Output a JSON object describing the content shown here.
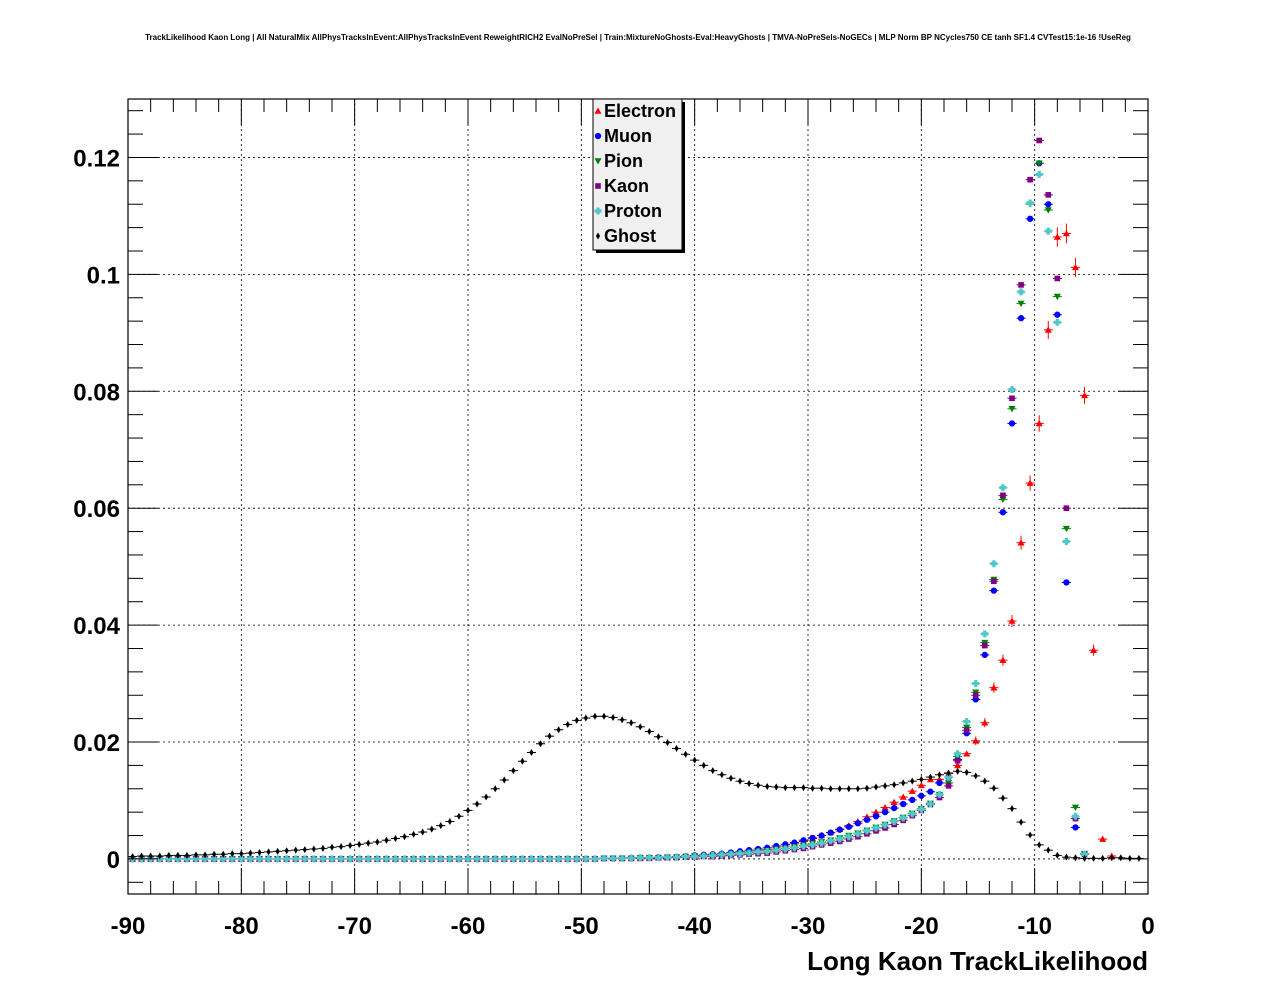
{
  "title": "TrackLikelihood Kaon Long | All NaturalMix AllPhysTracksInEvent:AllPhysTracksInEvent ReweightRICH2 EvalNoPreSel | Train:MixtureNoGhosts-Eval:HeavyGhosts | TMVA-NoPreSels-NoGECs | MLP Norm BP NCycles750 CE tanh SF1.4 CVTest15:1e-16 !UseReg",
  "chart_data": {
    "type": "scatter",
    "title": "TrackLikelihood Kaon Long | All NaturalMix AllPhysTracksInEvent:AllPhysTracksInEvent ReweightRICH2 EvalNoPreSel | Train:MixtureNoGhosts-Eval:HeavyGhosts | TMVA-NoPreSels-NoGECs | MLP Norm BP NCycles750 CE tanh SF1.4 CVTest15:1e-16 !UseReg",
    "xlabel": "Long Kaon TrackLikelihood",
    "ylabel": "",
    "xlim": [
      -90,
      0
    ],
    "ylim": [
      -0.006,
      0.13
    ],
    "grid": true,
    "legend_position": "top-center",
    "x_ticks": [
      "-90",
      "-80",
      "-70",
      "-60",
      "-50",
      "-40",
      "-30",
      "-20",
      "-10",
      "0"
    ],
    "x_tick_values": [
      -90,
      -80,
      -70,
      -60,
      -50,
      -40,
      -30,
      -20,
      -10,
      0
    ],
    "y_ticks": [
      "0",
      "0.02",
      "0.04",
      "0.06",
      "0.08",
      "0.1",
      "0.12"
    ],
    "y_tick_values": [
      0,
      0.02,
      0.04,
      0.06,
      0.08,
      0.1,
      0.12
    ],
    "x": [
      -89.6,
      -88.8,
      -88,
      -87.2,
      -86.4,
      -85.6,
      -84.8,
      -84,
      -83.2,
      -82.4,
      -81.6,
      -80.8,
      -80,
      -79.2,
      -78.4,
      -77.6,
      -76.8,
      -76,
      -75.2,
      -74.4,
      -73.6,
      -72.8,
      -72,
      -71.2,
      -70.4,
      -69.6,
      -68.8,
      -68,
      -67.2,
      -66.4,
      -65.6,
      -64.8,
      -64,
      -63.2,
      -62.4,
      -61.6,
      -60.8,
      -60,
      -59.2,
      -58.4,
      -57.6,
      -56.8,
      -56,
      -55.2,
      -54.4,
      -53.6,
      -52.8,
      -52,
      -51.2,
      -50.4,
      -49.6,
      -48.8,
      -48,
      -47.2,
      -46.4,
      -45.6,
      -44.8,
      -44,
      -43.2,
      -42.4,
      -41.6,
      -40.8,
      -40,
      -39.2,
      -38.4,
      -37.6,
      -36.8,
      -36,
      -35.2,
      -34.4,
      -33.6,
      -32.8,
      -32,
      -31.2,
      -30.4,
      -29.6,
      -28.8,
      -28,
      -27.2,
      -26.4,
      -25.6,
      -24.8,
      -24,
      -23.2,
      -22.4,
      -21.6,
      -20.8,
      -20,
      -19.2,
      -18.4,
      -17.6,
      -16.8,
      -16,
      -15.2,
      -14.4,
      -13.6,
      -12.8,
      -12,
      -11.2,
      -10.4,
      -9.6,
      -8.8,
      -8,
      -7.2,
      -6.4,
      -5.6,
      -4.8,
      -4,
      -3.2,
      -2.4,
      -1.6,
      -0.8
    ],
    "series": [
      {
        "name": "Electron",
        "color": "#ff0000",
        "marker": "triangle-up",
        "error_bars": true,
        "values": [
          0,
          0,
          0,
          0,
          0,
          0,
          0,
          0,
          0,
          0,
          0,
          0,
          0,
          0,
          0,
          0,
          0,
          0,
          0,
          0,
          0,
          0,
          0,
          0,
          0,
          0,
          0,
          0,
          0,
          0,
          0,
          0,
          0,
          0,
          0,
          0,
          0,
          0,
          0,
          0,
          0,
          0,
          0,
          0,
          0,
          0,
          0,
          0,
          0,
          0,
          0,
          0,
          0.0001,
          0.0001,
          0.0001,
          0.0001,
          0.0001,
          0.0002,
          0.0002,
          0.0002,
          0.0003,
          0.0003,
          0.0004,
          0.0005,
          0.0006,
          0.0007,
          0.0008,
          0.001,
          0.0012,
          0.0014,
          0.0016,
          0.0019,
          0.0022,
          0.0026,
          0.003,
          0.0035,
          0.004,
          0.0045,
          0.0051,
          0.0057,
          0.0064,
          0.0072,
          0.008,
          0.0088,
          0.0097,
          0.0106,
          0.0116,
          0.0126,
          0.0136,
          0.0136,
          0.0146,
          0.016,
          0.018,
          0.0202,
          0.0233,
          0.0293,
          0.034,
          0.0407,
          0.0541,
          0.0643,
          0.0745,
          0.0905,
          0.1064,
          0.107,
          0.1012,
          0.0793,
          0.0357,
          0.0034,
          0.0005
        ]
      },
      {
        "name": "Muon",
        "color": "#0000ff",
        "marker": "circle",
        "error_bars": false,
        "values": [
          0,
          0,
          0,
          0,
          0,
          0,
          0,
          0,
          0,
          0,
          0,
          0,
          0,
          0,
          0,
          0,
          0,
          0,
          0,
          0,
          0,
          0,
          0,
          0,
          0,
          0,
          0,
          0,
          0,
          0,
          0,
          0,
          0,
          0,
          0,
          0,
          0,
          0,
          0,
          0,
          0,
          0,
          0,
          0,
          0,
          0,
          0,
          0,
          0,
          0,
          0,
          0,
          0.0001,
          0.0001,
          0.0001,
          0.0002,
          0.0002,
          0.0002,
          0.0003,
          0.0003,
          0.0004,
          0.0005,
          0.0006,
          0.0007,
          0.0008,
          0.0009,
          0.0011,
          0.0013,
          0.0015,
          0.0017,
          0.0019,
          0.0022,
          0.0025,
          0.0028,
          0.0032,
          0.0036,
          0.004,
          0.0045,
          0.005,
          0.0055,
          0.0061,
          0.0067,
          0.0073,
          0.008,
          0.0087,
          0.0094,
          0.0101,
          0.0108,
          0.0115,
          0.013,
          0.014,
          0.017,
          0.0215,
          0.0273,
          0.0349,
          0.0459,
          0.0593,
          0.0745,
          0.0925,
          0.1095,
          0.119,
          0.112,
          0.0931,
          0.0473,
          0.0054,
          0.0008
        ]
      },
      {
        "name": "Pion",
        "color": "#008000",
        "marker": "triangle-down",
        "error_bars": false,
        "values": [
          0,
          0,
          0,
          0,
          0,
          0,
          0,
          0,
          0,
          0,
          0,
          0,
          0,
          0,
          0,
          0,
          0,
          0,
          0,
          0,
          0,
          0,
          0,
          0,
          0,
          0,
          0,
          0,
          0,
          0,
          0,
          0,
          0,
          0,
          0,
          0,
          0,
          0,
          0,
          0,
          0,
          0,
          0,
          0,
          0,
          0,
          0,
          0,
          0,
          0,
          0,
          0,
          0.0001,
          0.0001,
          0.0001,
          0.0001,
          0.0002,
          0.0002,
          0.0002,
          0.0003,
          0.0003,
          0.0004,
          0.0005,
          0.0005,
          0.0006,
          0.0007,
          0.0008,
          0.0009,
          0.0011,
          0.0012,
          0.0014,
          0.0016,
          0.0018,
          0.002,
          0.0023,
          0.0026,
          0.0029,
          0.0032,
          0.0036,
          0.004,
          0.0044,
          0.0049,
          0.0054,
          0.0059,
          0.0065,
          0.0071,
          0.0078,
          0.0086,
          0.0095,
          0.011,
          0.013,
          0.0175,
          0.0225,
          0.0285,
          0.037,
          0.0478,
          0.0615,
          0.077,
          0.095,
          0.112,
          0.119,
          0.111,
          0.0962,
          0.0565,
          0.0088,
          0.0009
        ]
      },
      {
        "name": "Kaon",
        "color": "#800080",
        "marker": "square",
        "error_bars": false,
        "values": [
          0,
          0,
          0,
          0,
          0,
          0,
          0,
          0,
          0,
          0,
          0,
          0,
          0,
          0,
          0,
          0,
          0,
          0,
          0,
          0,
          0,
          0,
          0,
          0,
          0,
          0,
          0,
          0,
          0,
          0,
          0,
          0,
          0,
          0,
          0,
          0,
          0,
          0,
          0,
          0,
          0,
          0,
          0,
          0,
          0,
          0,
          0,
          0,
          0,
          0,
          0,
          0,
          0.0001,
          0.0001,
          0.0001,
          0.0001,
          0.0001,
          0.0001,
          0.0002,
          0.0002,
          0.0002,
          0.0003,
          0.0003,
          0.0004,
          0.0004,
          0.0005,
          0.0006,
          0.0007,
          0.0008,
          0.0009,
          0.001,
          0.0012,
          0.0014,
          0.0016,
          0.0018,
          0.0021,
          0.0024,
          0.0027,
          0.003,
          0.0034,
          0.0038,
          0.0043,
          0.0048,
          0.0053,
          0.0059,
          0.0066,
          0.0074,
          0.0083,
          0.0093,
          0.0105,
          0.0125,
          0.0168,
          0.022,
          0.028,
          0.0365,
          0.0475,
          0.0622,
          0.0788,
          0.0982,
          0.1162,
          0.1229,
          0.1136,
          0.0993,
          0.06,
          0.0069,
          0.0008
        ]
      },
      {
        "name": "Proton",
        "color": "#4fc8c8",
        "marker": "cross",
        "error_bars": false,
        "values": [
          0,
          0,
          0,
          0,
          0,
          0,
          0,
          0,
          0,
          0,
          0,
          0,
          0,
          0,
          0,
          0,
          0,
          0,
          0,
          0,
          0,
          0,
          0,
          0,
          0,
          0,
          0,
          0,
          0,
          0,
          0,
          0,
          0,
          0,
          0,
          0,
          0,
          0,
          0,
          0,
          0,
          0,
          0,
          0,
          0,
          0,
          0,
          0,
          0,
          0,
          0,
          0,
          0.0001,
          0.0001,
          0.0001,
          0.0001,
          0.0002,
          0.0002,
          0.0002,
          0.0003,
          0.0003,
          0.0004,
          0.0004,
          0.0005,
          0.0006,
          0.0007,
          0.0008,
          0.0009,
          0.001,
          0.0012,
          0.0013,
          0.0015,
          0.0017,
          0.0019,
          0.0022,
          0.0024,
          0.0027,
          0.0031,
          0.0034,
          0.0038,
          0.0043,
          0.0048,
          0.0053,
          0.0058,
          0.0064,
          0.007,
          0.0077,
          0.0085,
          0.0094,
          0.011,
          0.014,
          0.018,
          0.0235,
          0.03,
          0.0385,
          0.0505,
          0.0635,
          0.0803,
          0.097,
          0.1122,
          0.1171,
          0.1074,
          0.0918,
          0.0543,
          0.0073,
          0.0008
        ]
      },
      {
        "name": "Ghost",
        "color": "#000000",
        "marker": "diamond",
        "error_bars": false,
        "values": [
          0.0004,
          0.0005,
          0.0005,
          0.0005,
          0.0006,
          0.0006,
          0.0006,
          0.0007,
          0.0007,
          0.0008,
          0.0008,
          0.0009,
          0.0009,
          0.001,
          0.0011,
          0.0012,
          0.0013,
          0.0014,
          0.0015,
          0.0016,
          0.0017,
          0.0018,
          0.002,
          0.0021,
          0.0023,
          0.0025,
          0.0027,
          0.0029,
          0.0032,
          0.0035,
          0.0038,
          0.0042,
          0.0046,
          0.0051,
          0.0057,
          0.0064,
          0.0073,
          0.0083,
          0.0094,
          0.0106,
          0.012,
          0.0135,
          0.0151,
          0.0167,
          0.0182,
          0.0197,
          0.021,
          0.0221,
          0.023,
          0.0237,
          0.0241,
          0.0244,
          0.0244,
          0.0242,
          0.0238,
          0.0233,
          0.0226,
          0.0218,
          0.0209,
          0.0199,
          0.0189,
          0.0179,
          0.0169,
          0.016,
          0.0151,
          0.0144,
          0.0138,
          0.0133,
          0.0129,
          0.0126,
          0.0124,
          0.0123,
          0.0122,
          0.0122,
          0.0122,
          0.0121,
          0.0121,
          0.012,
          0.012,
          0.012,
          0.012,
          0.0121,
          0.0123,
          0.0125,
          0.0127,
          0.013,
          0.0133,
          0.0136,
          0.014,
          0.0144,
          0.0147,
          0.015,
          0.0148,
          0.0142,
          0.0133,
          0.0121,
          0.0104,
          0.0086,
          0.0063,
          0.0041,
          0.0024,
          0.0015,
          0.0006,
          0.0003,
          0.0002,
          0.0001,
          0.0001,
          0.0001,
          0.0002,
          0.0002,
          0.0001,
          0.0001
        ]
      }
    ]
  }
}
